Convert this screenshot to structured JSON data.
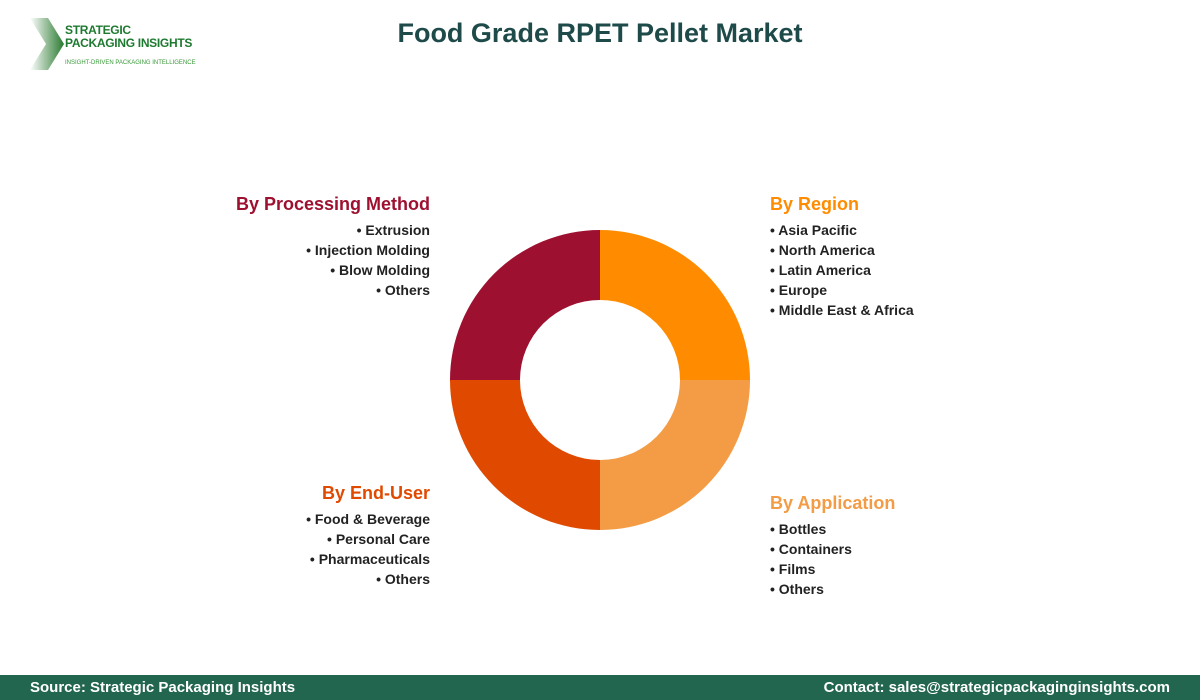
{
  "header": {
    "title": "Food Grade RPET Pellet Market"
  },
  "logo": {
    "line1": "STRATEGIC",
    "line2": "PACKAGING INSIGHTS",
    "tagline": "INSIGHT-DRIVEN PACKAGING INTELLIGENCE"
  },
  "segments": [
    {
      "title": "By Processing Method",
      "color": "#9E1030",
      "items": [
        "Extrusion",
        "Injection Molding",
        "Blow Molding",
        "Others"
      ]
    },
    {
      "title": "By Region",
      "color": "#FF8C00",
      "items": [
        "Asia Pacific",
        "North America",
        "Latin America",
        "Europe",
        "Middle East & Africa"
      ]
    },
    {
      "title": "By End-User",
      "color": "#E04A00",
      "items": [
        "Food & Beverage",
        "Personal Care",
        "Pharmaceuticals",
        "Others"
      ]
    },
    {
      "title": "By Application",
      "color": "#F39C45",
      "items": [
        "Bottles",
        "Containers",
        "Films",
        "Others"
      ]
    }
  ],
  "footer": {
    "source": "Source: Strategic Packaging Insights",
    "contact": "Contact: sales@strategicpackaginginsights.com"
  }
}
